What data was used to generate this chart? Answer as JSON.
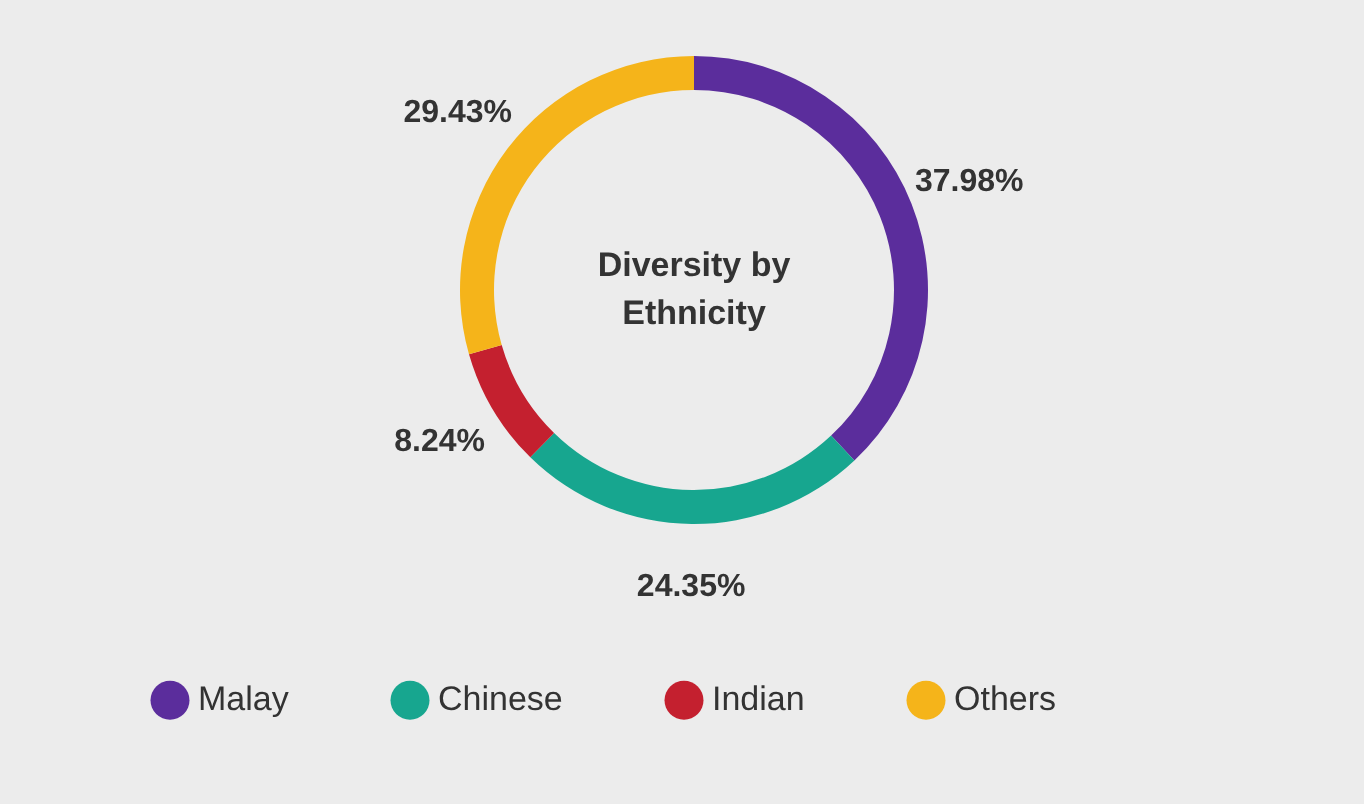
{
  "chart_data": {
    "type": "donut",
    "title": "Diversity by Ethnicity",
    "categories": [
      "Malay",
      "Chinese",
      "Indian",
      "Others"
    ],
    "values": [
      37.98,
      24.35,
      8.24,
      29.43
    ],
    "colors": [
      "#5b2d9c",
      "#17a68f",
      "#c4202f",
      "#f5b41a"
    ],
    "value_labels": [
      "37.98%",
      "24.35%",
      "8.24%",
      "29.43%"
    ],
    "legend": "bottom"
  }
}
